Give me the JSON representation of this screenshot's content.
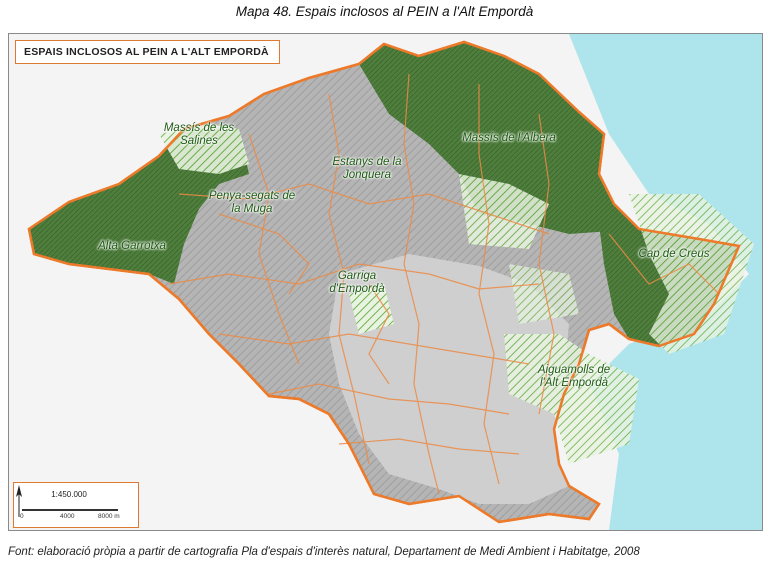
{
  "caption": "Mapa 48. Espais inclosos al PEIN a l'Alt Empordà",
  "map": {
    "title": "ESPAIS INCLOSOS AL PEIN A L'ALT EMPORDÀ",
    "labels": {
      "salines": "Massís de les Salines",
      "albera": "Massís de l'Albera",
      "jonquera": "Estanys de la Jonquera",
      "muga": "Penya-segats de la Muga",
      "garrotxa": "Alta Garrotxa",
      "creus": "Cap de Creus",
      "garriga": "Garriga d'Empordà",
      "aiguamolls": "Aiguamolls de l'Alt Empordà"
    },
    "scale": {
      "ratio": "1:450.000",
      "ticks": [
        "0",
        "4000",
        "8000 m"
      ]
    },
    "colors": {
      "protected_fill": "#4e7d3c",
      "protected_hatch": "#6fb24a",
      "boundary": "#ec7a2a",
      "relief": "#b8b8b8",
      "sea": "#aee4ec"
    }
  },
  "source": "Font: elaboració pròpia a partir de cartografia Pla d'espais d'interès natural, Departament de Medi Ambient i Habitatge, 2008"
}
